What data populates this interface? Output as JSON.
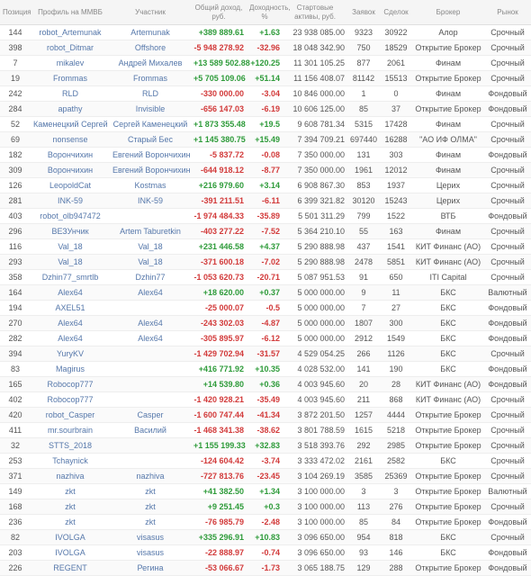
{
  "columns": {
    "pos": "Позиция",
    "profile": "Профиль\nна ММВБ",
    "user": "Участник",
    "income": "Общий\nдоход, руб.",
    "yield": "Доходность,\n%",
    "start": "Стартовые\nактивы, руб.",
    "req": "Заявок",
    "deals": "Сделок",
    "broker": "Брокер",
    "market": "Рынок"
  },
  "colors": {
    "pos": "#2e9b3a",
    "neg": "#d23a3a",
    "header_bg": "#f5f5f5",
    "header_fg": "#888",
    "row_alt": "#fafafa",
    "link": "#5577aa"
  },
  "rows": [
    {
      "pos": "144",
      "profile": "robot_Artemunak",
      "user": "Artemunak",
      "income": "+389 889.61",
      "income_c": "pos",
      "yield": "+1.63",
      "yield_c": "pos",
      "start": "23 938 085.00",
      "req": "9323",
      "deals": "30922",
      "broker": "Алор",
      "market": "Срочный"
    },
    {
      "pos": "398",
      "profile": "robot_Ditmar",
      "user": "Offshore",
      "income": "-5 948 278.92",
      "income_c": "neg",
      "yield": "-32.96",
      "yield_c": "neg",
      "start": "18 048 342.90",
      "req": "750",
      "deals": "18529",
      "broker": "Открытие Брокер",
      "market": "Срочный"
    },
    {
      "pos": "7",
      "profile": "mikalev",
      "user": "Андрей Михалев",
      "income": "+13 589 502.88",
      "income_c": "pos",
      "yield": "+120.25",
      "yield_c": "pos",
      "start": "11 301 105.25",
      "req": "877",
      "deals": "2061",
      "broker": "Финам",
      "market": "Срочный"
    },
    {
      "pos": "19",
      "profile": "Frommas",
      "user": "Frommas",
      "income": "+5 705 109.06",
      "income_c": "pos",
      "yield": "+51.14",
      "yield_c": "pos",
      "start": "11 156 408.07",
      "req": "81142",
      "deals": "15513",
      "broker": "Открытие Брокер",
      "market": "Срочный"
    },
    {
      "pos": "242",
      "profile": "RLD",
      "user": "RLD",
      "income": "-330 000.00",
      "income_c": "neg",
      "yield": "-3.04",
      "yield_c": "neg",
      "start": "10 846 000.00",
      "req": "1",
      "deals": "0",
      "broker": "Финам",
      "market": "Фондовый"
    },
    {
      "pos": "284",
      "profile": "apathy",
      "user": "Invisible",
      "income": "-656 147.03",
      "income_c": "neg",
      "yield": "-6.19",
      "yield_c": "neg",
      "start": "10 606 125.00",
      "req": "85",
      "deals": "37",
      "broker": "Открытие Брокер",
      "market": "Фондовый"
    },
    {
      "pos": "52",
      "profile": "Каменецкий Сергей",
      "user": "Сергей Каменецкий",
      "income": "+1 873 355.48",
      "income_c": "pos",
      "yield": "+19.5",
      "yield_c": "pos",
      "start": "9 608 781.34",
      "req": "5315",
      "deals": "17428",
      "broker": "Финам",
      "market": "Срочный"
    },
    {
      "pos": "69",
      "profile": "nonsense",
      "user": "Старый Бес",
      "income": "+1 145 380.75",
      "income_c": "pos",
      "yield": "+15.49",
      "yield_c": "pos",
      "start": "7 394 709.21",
      "req": "697440",
      "deals": "16288",
      "broker": "\"АО ИФ ОЛМА\"",
      "market": "Срочный"
    },
    {
      "pos": "182",
      "profile": "Ворончихин",
      "user": "Евгений Ворончихин",
      "income": "-5 837.72",
      "income_c": "neg",
      "yield": "-0.08",
      "yield_c": "neg",
      "start": "7 350 000.00",
      "req": "131",
      "deals": "303",
      "broker": "Финам",
      "market": "Фондовый"
    },
    {
      "pos": "309",
      "profile": "Ворончихин",
      "user": "Евгений Ворончихин",
      "income": "-644 918.12",
      "income_c": "neg",
      "yield": "-8.77",
      "yield_c": "neg",
      "start": "7 350 000.00",
      "req": "1961",
      "deals": "12012",
      "broker": "Финам",
      "market": "Срочный"
    },
    {
      "pos": "126",
      "profile": "LeopoldCat",
      "user": "Kostmas",
      "income": "+216 979.60",
      "income_c": "pos",
      "yield": "+3.14",
      "yield_c": "pos",
      "start": "6 908 867.30",
      "req": "853",
      "deals": "1937",
      "broker": "Церих",
      "market": "Срочный"
    },
    {
      "pos": "281",
      "profile": "INK-59",
      "user": "INK-59",
      "income": "-391 211.51",
      "income_c": "neg",
      "yield": "-6.11",
      "yield_c": "neg",
      "start": "6 399 321.82",
      "req": "30120",
      "deals": "15243",
      "broker": "Церих",
      "market": "Срочный"
    },
    {
      "pos": "403",
      "profile": "robot_olb947472",
      "user": "",
      "income": "-1 974 484.33",
      "income_c": "neg",
      "yield": "-35.89",
      "yield_c": "neg",
      "start": "5 501 311.29",
      "req": "799",
      "deals": "1522",
      "broker": "ВТБ",
      "market": "Фондовый"
    },
    {
      "pos": "296",
      "profile": "ВЕЗУнчик",
      "user": "Artem Taburetkin",
      "income": "-403 277.22",
      "income_c": "neg",
      "yield": "-7.52",
      "yield_c": "neg",
      "start": "5 364 210.10",
      "req": "55",
      "deals": "163",
      "broker": "Финам",
      "market": "Срочный"
    },
    {
      "pos": "116",
      "profile": "Val_18",
      "user": "Val_18",
      "income": "+231 446.58",
      "income_c": "pos",
      "yield": "+4.37",
      "yield_c": "pos",
      "start": "5 290 888.98",
      "req": "437",
      "deals": "1541",
      "broker": "КИТ Финанс (АО)",
      "market": "Срочный"
    },
    {
      "pos": "293",
      "profile": "Val_18",
      "user": "Val_18",
      "income": "-371 600.18",
      "income_c": "neg",
      "yield": "-7.02",
      "yield_c": "neg",
      "start": "5 290 888.98",
      "req": "2478",
      "deals": "5851",
      "broker": "КИТ Финанс (АО)",
      "market": "Срочный"
    },
    {
      "pos": "358",
      "profile": "Dzhin77_smrtlb",
      "user": "Dzhin77",
      "income": "-1 053 620.73",
      "income_c": "neg",
      "yield": "-20.71",
      "yield_c": "neg",
      "start": "5 087 951.53",
      "req": "91",
      "deals": "650",
      "broker": "ITI Capital",
      "market": "Срочный"
    },
    {
      "pos": "164",
      "profile": "Alex64",
      "user": "Alex64",
      "income": "+18 620.00",
      "income_c": "pos",
      "yield": "+0.37",
      "yield_c": "pos",
      "start": "5 000 000.00",
      "req": "9",
      "deals": "11",
      "broker": "БКС",
      "market": "Валютный"
    },
    {
      "pos": "194",
      "profile": "AXEL51",
      "user": "",
      "income": "-25 000.07",
      "income_c": "neg",
      "yield": "-0.5",
      "yield_c": "neg",
      "start": "5 000 000.00",
      "req": "7",
      "deals": "27",
      "broker": "БКС",
      "market": "Фондовый"
    },
    {
      "pos": "270",
      "profile": "Alex64",
      "user": "Alex64",
      "income": "-243 302.03",
      "income_c": "neg",
      "yield": "-4.87",
      "yield_c": "neg",
      "start": "5 000 000.00",
      "req": "1807",
      "deals": "300",
      "broker": "БКС",
      "market": "Фондовый"
    },
    {
      "pos": "282",
      "profile": "Alex64",
      "user": "Alex64",
      "income": "-305 895.97",
      "income_c": "neg",
      "yield": "-6.12",
      "yield_c": "neg",
      "start": "5 000 000.00",
      "req": "2912",
      "deals": "1549",
      "broker": "БКС",
      "market": "Фондовый"
    },
    {
      "pos": "394",
      "profile": "YuryKV",
      "user": "",
      "income": "-1 429 702.94",
      "income_c": "neg",
      "yield": "-31.57",
      "yield_c": "neg",
      "start": "4 529 054.25",
      "req": "266",
      "deals": "1126",
      "broker": "БКС",
      "market": "Срочный"
    },
    {
      "pos": "83",
      "profile": "Magirus",
      "user": "",
      "income": "+416 771.92",
      "income_c": "pos",
      "yield": "+10.35",
      "yield_c": "pos",
      "start": "4 028 532.00",
      "req": "141",
      "deals": "190",
      "broker": "БКС",
      "market": "Фондовый"
    },
    {
      "pos": "165",
      "profile": "Robocop777",
      "user": "",
      "income": "+14 539.80",
      "income_c": "pos",
      "yield": "+0.36",
      "yield_c": "pos",
      "start": "4 003 945.60",
      "req": "20",
      "deals": "28",
      "broker": "КИТ Финанс (АО)",
      "market": "Фондовый"
    },
    {
      "pos": "402",
      "profile": "Robocop777",
      "user": "",
      "income": "-1 420 928.21",
      "income_c": "neg",
      "yield": "-35.49",
      "yield_c": "neg",
      "start": "4 003 945.60",
      "req": "211",
      "deals": "868",
      "broker": "КИТ Финанс (АО)",
      "market": "Срочный"
    },
    {
      "pos": "420",
      "profile": "robot_Casper",
      "user": "Casper",
      "income": "-1 600 747.44",
      "income_c": "neg",
      "yield": "-41.34",
      "yield_c": "neg",
      "start": "3 872 201.50",
      "req": "1257",
      "deals": "4444",
      "broker": "Открытие Брокер",
      "market": "Срочный"
    },
    {
      "pos": "411",
      "profile": "mr.sourbrain",
      "user": "Василий",
      "income": "-1 468 341.38",
      "income_c": "neg",
      "yield": "-38.62",
      "yield_c": "neg",
      "start": "3 801 788.59",
      "req": "1615",
      "deals": "5218",
      "broker": "Открытие Брокер",
      "market": "Срочный"
    },
    {
      "pos": "32",
      "profile": "STTS_2018",
      "user": "",
      "income": "+1 155 199.33",
      "income_c": "pos",
      "yield": "+32.83",
      "yield_c": "pos",
      "start": "3 518 393.76",
      "req": "292",
      "deals": "2985",
      "broker": "Открытие Брокер",
      "market": "Срочный"
    },
    {
      "pos": "253",
      "profile": "Tchaynick",
      "user": "",
      "income": "-124 604.42",
      "income_c": "neg",
      "yield": "-3.74",
      "yield_c": "neg",
      "start": "3 333 472.02",
      "req": "2161",
      "deals": "2582",
      "broker": "БКС",
      "market": "Срочный"
    },
    {
      "pos": "371",
      "profile": "nazhiva",
      "user": "nazhiva",
      "income": "-727 813.76",
      "income_c": "neg",
      "yield": "-23.45",
      "yield_c": "neg",
      "start": "3 104 269.19",
      "req": "3585",
      "deals": "25369",
      "broker": "Открытие Брокер",
      "market": "Срочный"
    },
    {
      "pos": "149",
      "profile": "zkt",
      "user": "zkt",
      "income": "+41 382.50",
      "income_c": "pos",
      "yield": "+1.34",
      "yield_c": "pos",
      "start": "3 100 000.00",
      "req": "3",
      "deals": "3",
      "broker": "Открытие Брокер",
      "market": "Валютный"
    },
    {
      "pos": "168",
      "profile": "zkt",
      "user": "zkt",
      "income": "+9 251.45",
      "income_c": "pos",
      "yield": "+0.3",
      "yield_c": "pos",
      "start": "3 100 000.00",
      "req": "113",
      "deals": "276",
      "broker": "Открытие Брокер",
      "market": "Срочный"
    },
    {
      "pos": "236",
      "profile": "zkt",
      "user": "zkt",
      "income": "-76 985.79",
      "income_c": "neg",
      "yield": "-2.48",
      "yield_c": "neg",
      "start": "3 100 000.00",
      "req": "85",
      "deals": "84",
      "broker": "Открытие Брокер",
      "market": "Фондовый"
    },
    {
      "pos": "82",
      "profile": "IVOLGA",
      "user": "visasus",
      "income": "+335 296.91",
      "income_c": "pos",
      "yield": "+10.83",
      "yield_c": "pos",
      "start": "3 096 650.00",
      "req": "954",
      "deals": "818",
      "broker": "БКС",
      "market": "Срочный"
    },
    {
      "pos": "203",
      "profile": "IVOLGA",
      "user": "visasus",
      "income": "-22 888.97",
      "income_c": "neg",
      "yield": "-0.74",
      "yield_c": "neg",
      "start": "3 096 650.00",
      "req": "93",
      "deals": "146",
      "broker": "БКС",
      "market": "Фондовый"
    },
    {
      "pos": "226",
      "profile": "REGENT",
      "user": "Регина",
      "income": "-53 066.67",
      "income_c": "neg",
      "yield": "-1.73",
      "yield_c": "neg",
      "start": "3 065 188.75",
      "req": "129",
      "deals": "288",
      "broker": "Открытие Брокер",
      "market": "Фондовый"
    }
  ]
}
